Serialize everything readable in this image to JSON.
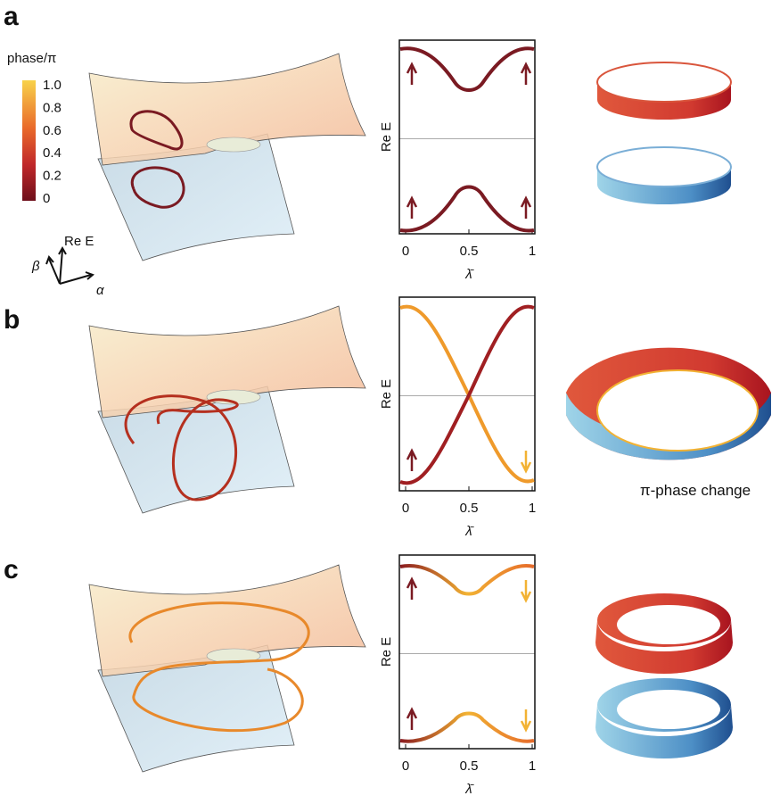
{
  "panels": [
    {
      "label": "a",
      "plot": {
        "ylabel": "Re E",
        "xlabel": "λ̄",
        "xticks": [
          "0",
          "0.5",
          "1"
        ]
      }
    },
    {
      "label": "b",
      "plot": {
        "ylabel": "Re E",
        "xlabel": "λ̄",
        "xticks": [
          "0",
          "0.5",
          "1"
        ]
      },
      "caption": "π-phase change"
    },
    {
      "label": "c",
      "plot": {
        "ylabel": "Re E",
        "xlabel": "λ̄",
        "xticks": [
          "0",
          "0.5",
          "1"
        ]
      }
    }
  ],
  "colorbar": {
    "title": "phase/π",
    "ticks": [
      "1.0",
      "0.8",
      "0.6",
      "0.4",
      "0.2",
      "0"
    ]
  },
  "axes_legend": {
    "z": "Re E",
    "y": "β",
    "x": "α"
  }
}
